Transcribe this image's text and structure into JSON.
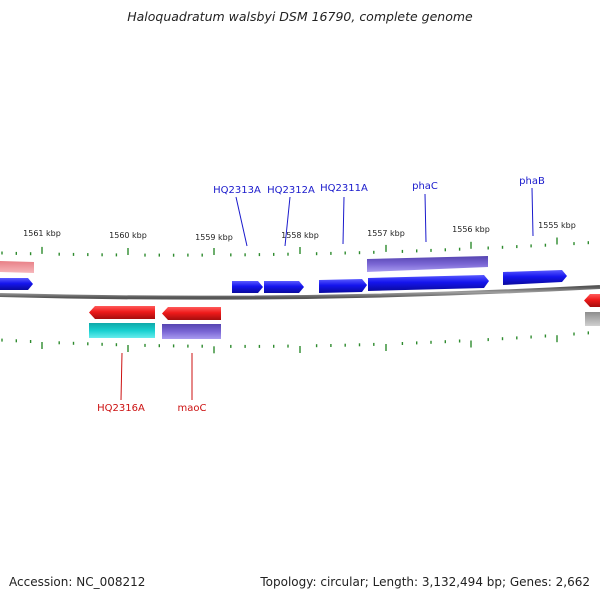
{
  "title": "Haloquadratum walsbyi DSM 16790, complete genome",
  "footer": {
    "accession": "Accession: NC_008212",
    "summary": "Topology: circular; Length: 3,132,494 bp; Genes: 2,662"
  },
  "ruler": {
    "ticks": [
      {
        "label": "1561 kbp",
        "kbp": 1561
      },
      {
        "label": "1560 kbp",
        "kbp": 1560
      },
      {
        "label": "1559 kbp",
        "kbp": 1559
      },
      {
        "label": "1558 kbp",
        "kbp": 1558
      },
      {
        "label": "1557 kbp",
        "kbp": 1557
      },
      {
        "label": "1556 kbp",
        "kbp": 1556
      },
      {
        "label": "1555 kbp",
        "kbp": 1555
      }
    ]
  },
  "genes": {
    "forward_labels": [
      "HQ2313A",
      "HQ2312A",
      "HQ2311A",
      "phaC",
      "phaB"
    ],
    "reverse_labels": [
      "HQ2316A",
      "maoC"
    ]
  },
  "colors": {
    "forward": "#1515ee",
    "reverse": "#ee1a1a",
    "forward_label": "#1a1acc",
    "reverse_label": "#cc1111",
    "cog_purple": "#6a55c8",
    "cog_cyan": "#14c8c8",
    "cog_pink": "#e87f86",
    "cog_grey": "#a9a9a9",
    "backbone": "#7a7a7a",
    "tick": "#2e8b2e"
  }
}
